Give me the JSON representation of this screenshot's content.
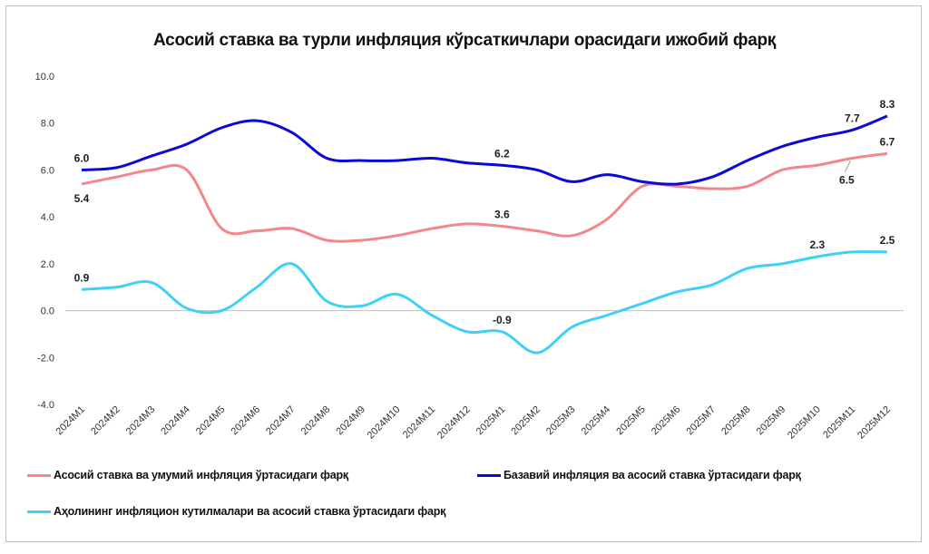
{
  "chart_data": {
    "type": "line",
    "title": "Асосий ставка ва турли инфляция кўрсаткичлари орасидаги ижобий фарқ",
    "xlabel": "",
    "ylabel": "",
    "ylim": [
      -4.0,
      10.0
    ],
    "yticks": [
      "10.0",
      "8.0",
      "6.0",
      "4.0",
      "2.0",
      "0.0",
      "-2.0",
      "-4.0"
    ],
    "grid": false,
    "legend_position": "bottom",
    "categories": [
      "2024M1",
      "2024M2",
      "2024M3",
      "2024M4",
      "2024M5",
      "2024M6",
      "2024M7",
      "2024M8",
      "2024M9",
      "2024M10",
      "2024M11",
      "2024M12",
      "2025M1",
      "2025M2",
      "2025M3",
      "2025M4",
      "2025M5",
      "2025M6",
      "2025M7",
      "2025M8",
      "2025M9",
      "2025M10",
      "2025M11",
      "2025M12"
    ],
    "series": [
      {
        "name": "Асосий ставка ва умумий инфляция ўртасидаги фарқ",
        "color": "#f4868a",
        "values": [
          5.4,
          5.7,
          6.0,
          6.0,
          3.5,
          3.4,
          3.5,
          3.0,
          3.0,
          3.2,
          3.5,
          3.7,
          3.6,
          3.4,
          3.2,
          3.9,
          5.3,
          5.3,
          5.2,
          5.3,
          6.0,
          6.2,
          6.5,
          6.7
        ],
        "data_labels": [
          {
            "index": 0,
            "text": "5.4",
            "position": "below"
          },
          {
            "index": 12,
            "text": "3.6",
            "position": "above"
          },
          {
            "index": 22,
            "text": "6.5",
            "position": "below"
          },
          {
            "index": 23,
            "text": "6.7",
            "position": "above"
          }
        ]
      },
      {
        "name": "Базавий инфляция ва асосий ставка ўртасидаги фарқ",
        "color": "#0a0ad6",
        "values": [
          6.0,
          6.1,
          6.6,
          7.1,
          7.8,
          8.1,
          7.6,
          6.5,
          6.4,
          6.4,
          6.5,
          6.3,
          6.2,
          6.0,
          5.5,
          5.8,
          5.5,
          5.4,
          5.7,
          6.4,
          7.0,
          7.4,
          7.7,
          8.3
        ],
        "data_labels": [
          {
            "index": 0,
            "text": "6.0",
            "position": "above"
          },
          {
            "index": 12,
            "text": "6.2",
            "position": "above"
          },
          {
            "index": 22,
            "text": "7.7",
            "position": "above"
          },
          {
            "index": 23,
            "text": "8.3",
            "position": "above"
          }
        ]
      },
      {
        "name": "Аҳолининг инфляцион кутилмалари ва асосий ставка ўртасидаги фарқ",
        "color": "#3fd0f5",
        "values": [
          0.9,
          1.0,
          1.2,
          0.1,
          0.0,
          1.0,
          2.0,
          0.4,
          0.2,
          0.7,
          -0.2,
          -0.9,
          -0.9,
          -1.8,
          -0.7,
          -0.2,
          0.3,
          0.8,
          1.1,
          1.8,
          2.0,
          2.3,
          2.5,
          2.5
        ],
        "data_labels": [
          {
            "index": 0,
            "text": "0.9",
            "position": "above"
          },
          {
            "index": 12,
            "text": "-0.9",
            "position": "above"
          },
          {
            "index": 21,
            "text": "2.3",
            "position": "above"
          },
          {
            "index": 23,
            "text": "2.5",
            "position": "above"
          }
        ]
      }
    ]
  }
}
